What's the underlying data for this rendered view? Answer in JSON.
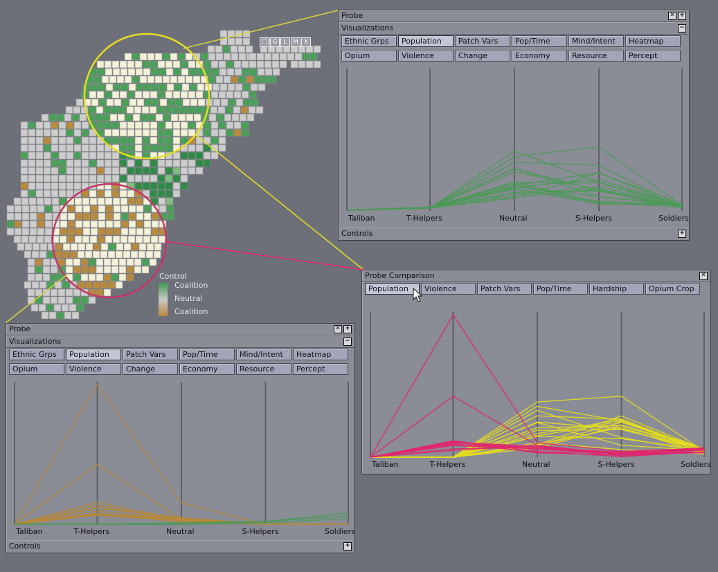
{
  "colors": {
    "background": "#6e7079",
    "taliban_green": "#4a9a55",
    "coalition_brown": "#b7893b",
    "highlight_yellow": "#e6dd1e",
    "highlight_magenta": "#e0266e",
    "neutral_cell": "#cfcfcf",
    "lens_cell": "#f3f0d6"
  },
  "map": {
    "buttons": [
      "□",
      "G",
      "L",
      "M",
      "X"
    ],
    "legend": {
      "title": "Control",
      "top": "Coalition",
      "middle": "Neutral",
      "bottom": "Coalition"
    }
  },
  "probe_top": {
    "title": "Probe",
    "section": "Visualizations",
    "tabs_row1": [
      "Ethnic Grps",
      "Population",
      "Patch Vars",
      "Pop/Time",
      "Mind/Intent",
      "Heatmap"
    ],
    "tabs_row2": [
      "Opium",
      "Violence",
      "Change",
      "Economy",
      "Resource",
      "Percept"
    ],
    "selected_tab": "Population",
    "axes": [
      "Taliban",
      "T-Helpers",
      "Neutral",
      "S-Helpers",
      "Soldiers"
    ],
    "controls_label": "Controls",
    "line_color": "#4a9a55"
  },
  "probe_bottom": {
    "title": "Probe",
    "section": "Visualizations",
    "tabs_row1": [
      "Ethnic Grps",
      "Population",
      "Patch Vars",
      "Pop/Time",
      "Mind/Intent",
      "Heatmap"
    ],
    "tabs_row2": [
      "Opium",
      "Violence",
      "Change",
      "Economy",
      "Resource",
      "Percept"
    ],
    "selected_tab": "Population",
    "axes": [
      "Taliban",
      "T-Helpers",
      "Neutral",
      "S-Helpers",
      "Soldiers"
    ],
    "controls_label": "Controls",
    "line_color": "#b7893b"
  },
  "probe_comparison": {
    "title": "Probe Comparison",
    "tabs": [
      "Population",
      "Violence",
      "Patch Vars",
      "Pop/Time",
      "Hardship",
      "Opium Crop"
    ],
    "selected_tab": "Population",
    "axes": [
      "Taliban",
      "T-Helpers",
      "Neutral",
      "S-Helpers",
      "Soldiers"
    ],
    "series_colors": [
      "#e6dd1e",
      "#e0266e"
    ]
  }
}
